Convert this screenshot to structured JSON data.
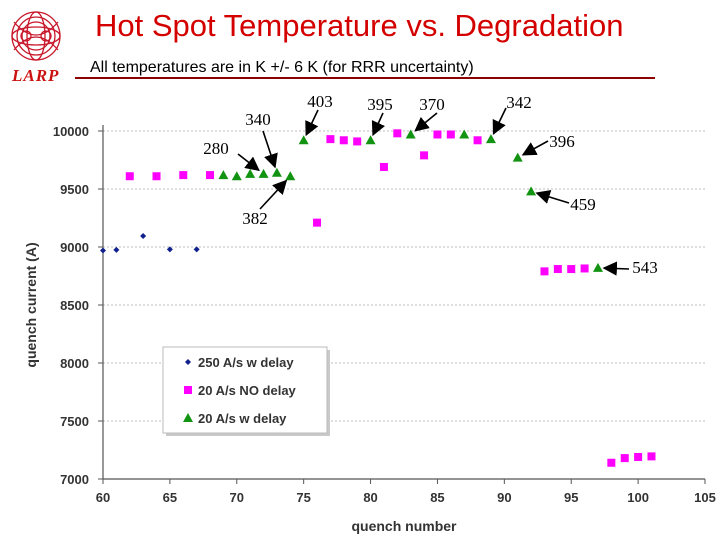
{
  "header": {
    "title": "Hot Spot Temperature vs. Degradation",
    "subtitle": "All temperatures are in K +/- 6 K (for RRR uncertainty)",
    "logo_text": "LARP"
  },
  "colors": {
    "title": "#d40000",
    "magenta": "#ff00ff",
    "green": "#129312",
    "navy": "#10208c",
    "accent_line": "#8b0000"
  },
  "chart_data": {
    "type": "scatter",
    "title": "",
    "xlabel": "quench number",
    "ylabel": "quench current (A)",
    "xlim": [
      60,
      105
    ],
    "ylim": [
      7000,
      10000
    ],
    "xticks": [
      "60",
      "65",
      "70",
      "75",
      "80",
      "85",
      "90",
      "95",
      "100",
      "105"
    ],
    "yticks": [
      "7000",
      "7500",
      "8000",
      "8500",
      "9000",
      "9500",
      "10000"
    ],
    "grid": "horizontal",
    "legend_position": "left-middle",
    "series": [
      {
        "name": "250 A/s w delay",
        "marker": "diamond",
        "color": "#10208c",
        "points": [
          [
            60,
            8970
          ],
          [
            61,
            8975
          ],
          [
            63,
            9095
          ],
          [
            65,
            8980
          ],
          [
            67,
            8980
          ]
        ]
      },
      {
        "name": "20 A/s NO delay",
        "marker": "square",
        "color": "#ff00ff",
        "points": [
          [
            62,
            9610
          ],
          [
            64,
            9610
          ],
          [
            66,
            9620
          ],
          [
            68,
            9620
          ],
          [
            76,
            9210
          ],
          [
            77,
            9930
          ],
          [
            78,
            9920
          ],
          [
            79,
            9910
          ],
          [
            81,
            9690
          ],
          [
            82,
            9980
          ],
          [
            84,
            9790
          ],
          [
            85,
            9970
          ],
          [
            86,
            9970
          ],
          [
            88,
            9920
          ],
          [
            93,
            8790
          ],
          [
            94,
            8810
          ],
          [
            95,
            8810
          ],
          [
            96,
            8815
          ],
          [
            98,
            7140
          ],
          [
            99,
            7180
          ],
          [
            100,
            7190
          ],
          [
            101,
            7195
          ]
        ]
      },
      {
        "name": "20 A/s w delay",
        "marker": "triangle",
        "color": "#129312",
        "points": [
          [
            69,
            9620
          ],
          [
            70,
            9610
          ],
          [
            71,
            9630
          ],
          [
            72,
            9630
          ],
          [
            73,
            9640
          ],
          [
            74,
            9610
          ],
          [
            75,
            9920
          ],
          [
            80,
            9920
          ],
          [
            83,
            9970
          ],
          [
            87,
            9970
          ],
          [
            89,
            9930
          ],
          [
            91,
            9770
          ],
          [
            92,
            9480
          ],
          [
            97,
            8820
          ]
        ]
      }
    ],
    "annotations": [
      {
        "text": "340",
        "target": [
          73,
          9640
        ]
      },
      {
        "text": "280",
        "target": [
          72,
          9630
        ]
      },
      {
        "text": "382",
        "target": [
          74,
          9610
        ]
      },
      {
        "text": "403",
        "target": [
          75,
          9920
        ]
      },
      {
        "text": "395",
        "target": [
          80,
          9920
        ]
      },
      {
        "text": "370",
        "target": [
          83,
          9970
        ]
      },
      {
        "text": "342",
        "target": [
          89,
          9930
        ]
      },
      {
        "text": "396",
        "target": [
          91,
          9770
        ]
      },
      {
        "text": "459",
        "target": [
          92,
          9480
        ]
      },
      {
        "text": "543",
        "target": [
          97,
          8820
        ]
      }
    ]
  }
}
